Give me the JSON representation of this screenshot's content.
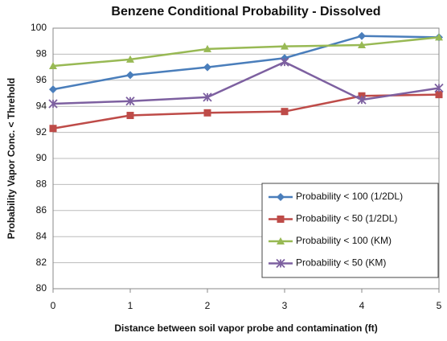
{
  "chart_data": {
    "type": "line",
    "title": "Benzene Conditional Probability - Dissolved",
    "x_label": "Distance between soil vapor probe and contamination (ft)",
    "y_label": "Probability Vapor Conc. < Threhold",
    "x": [
      0,
      1,
      2,
      3,
      4,
      5
    ],
    "xlim": [
      0,
      5
    ],
    "xticks": [
      0,
      1,
      2,
      3,
      4,
      5
    ],
    "ylim": [
      80,
      100
    ],
    "yticks": [
      80,
      82,
      84,
      86,
      88,
      90,
      92,
      94,
      96,
      98,
      100
    ],
    "grid": true,
    "legend": "lower right",
    "series": [
      {
        "name": "Probability < 100 (1/2DL)",
        "color": "#4a7ebb",
        "marker": "diamond",
        "values": [
          95.3,
          96.4,
          97.0,
          97.7,
          99.4,
          99.3
        ]
      },
      {
        "name": "Probability < 50 (1/2DL)",
        "color": "#be4b48",
        "marker": "square",
        "values": [
          92.3,
          93.3,
          93.5,
          93.6,
          94.8,
          94.9
        ]
      },
      {
        "name": "Probability < 100 (KM)",
        "color": "#98b954",
        "marker": "triangle",
        "values": [
          97.1,
          97.6,
          98.4,
          98.6,
          98.7,
          99.3
        ]
      },
      {
        "name": "Probability < 50 (KM)",
        "color": "#7d60a0",
        "marker": "x",
        "values": [
          94.2,
          94.4,
          94.7,
          97.4,
          94.5,
          95.4
        ]
      }
    ]
  }
}
